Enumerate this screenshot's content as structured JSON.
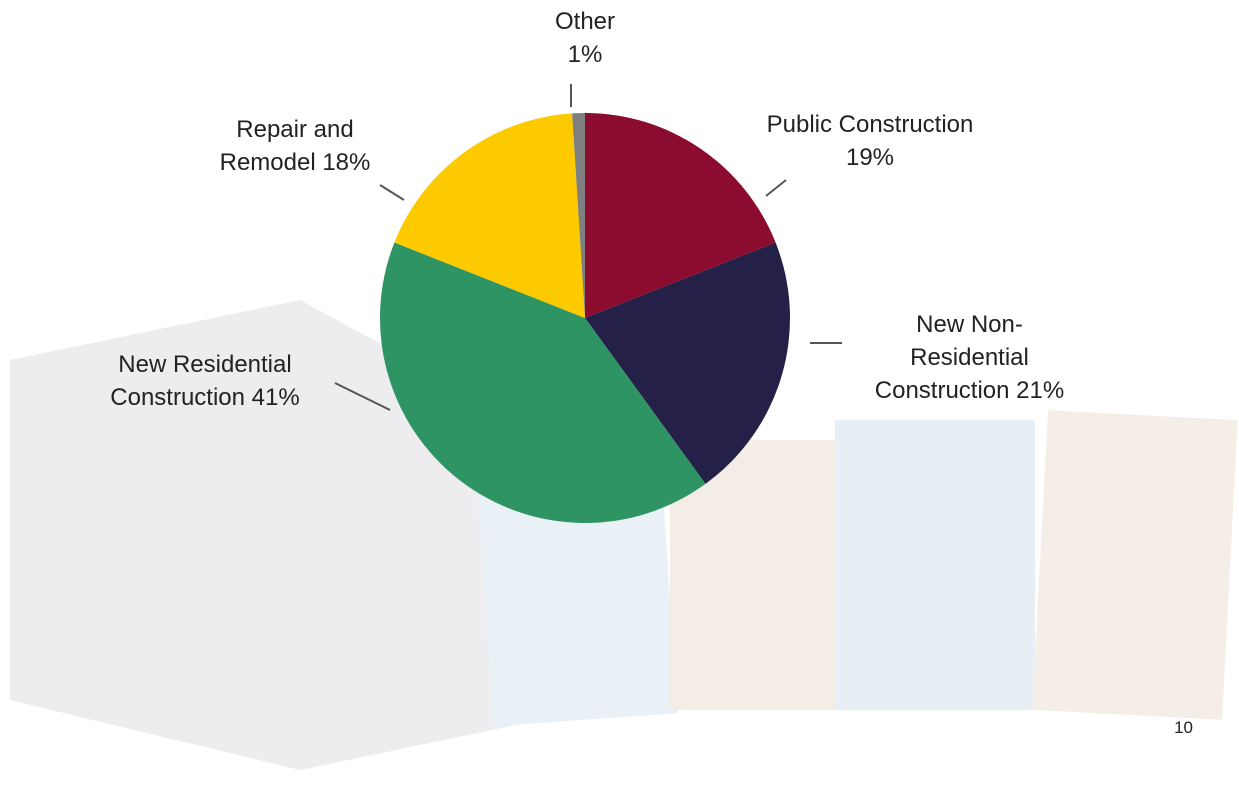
{
  "chart_data": {
    "type": "pie",
    "categories": [
      "Public Construction",
      "New Non-Residential Construction",
      "New Residential Construction",
      "Repair and Remodel",
      "Other"
    ],
    "values": [
      19,
      21,
      41,
      18,
      1
    ],
    "value_labels": [
      "19%",
      "21%",
      "41%",
      "18%",
      "1%"
    ],
    "colors": [
      "#8c0c2f",
      "#252048",
      "#2f9464",
      "#fdca00",
      "#7f7f7f"
    ]
  },
  "page_number": "10"
}
